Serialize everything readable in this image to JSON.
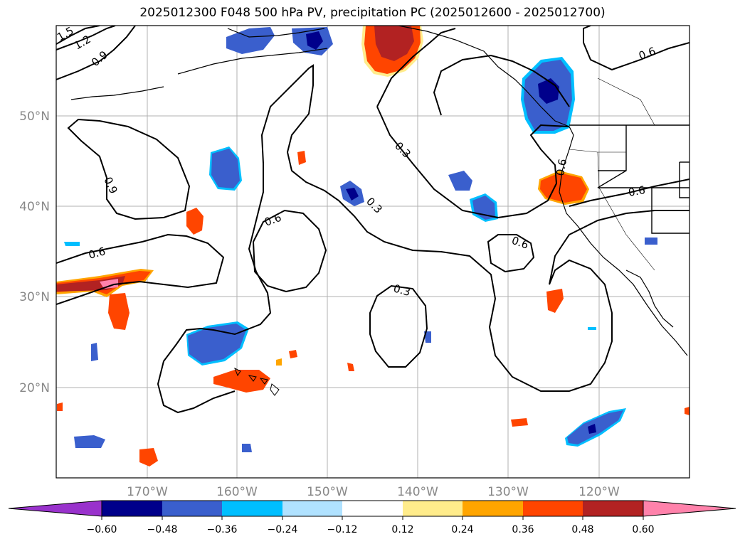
{
  "title": "2025012300 F048 500 hPa PV, precipitation PC (2025012600 - 2025012700)",
  "lat_labels": [
    "50°N",
    "40°N",
    "30°N",
    "20°N"
  ],
  "lon_labels": [
    "170°W",
    "160°W",
    "150°W",
    "140°W",
    "130°W",
    "120°W"
  ],
  "contour_labels": [
    "1.5",
    "1.2",
    "0.9",
    "0.9",
    "0.6",
    "0.6",
    "0.3",
    "0.3",
    "0.3",
    "0.6",
    "0.6",
    "0.6",
    "0.6"
  ],
  "colorbar": {
    "colors": [
      "#9932cc",
      "#00008b",
      "#3a5fcd",
      "#00bfff",
      "#b0e2ff",
      "#ffffff",
      "#ffec8b",
      "#ffa500",
      "#ff4500",
      "#b22222",
      "#ff82ab"
    ],
    "ticks": [
      "−0.60",
      "−0.48",
      "−0.36",
      "−0.24",
      "−0.12",
      "0.12",
      "0.24",
      "0.36",
      "0.48",
      "0.60"
    ]
  }
}
